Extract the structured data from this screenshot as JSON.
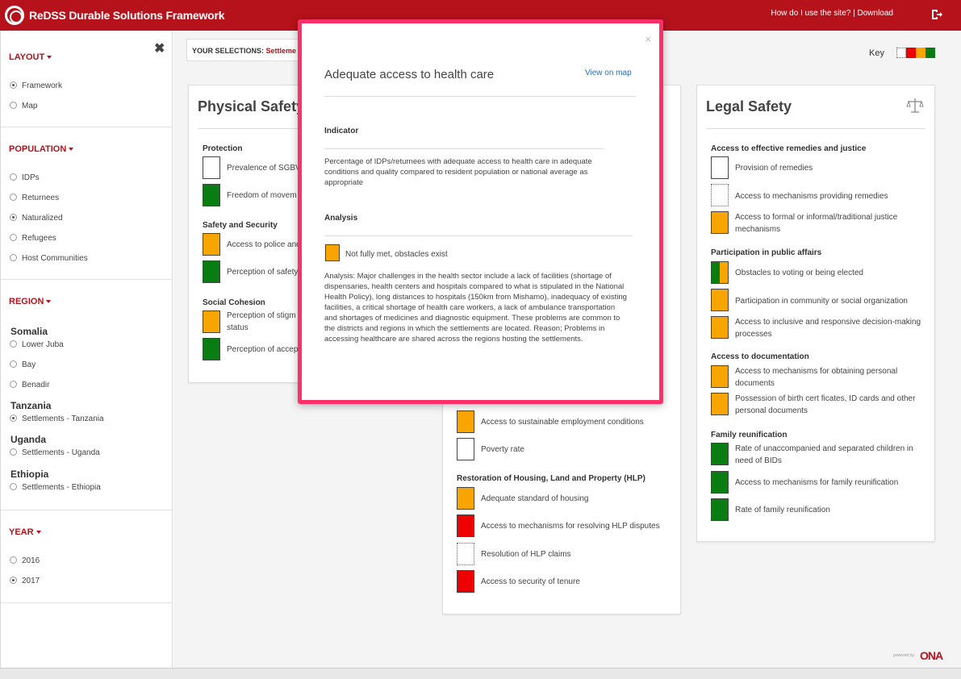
{
  "header": {
    "title": "ReDSS Durable Solutions Framework",
    "help_link": "How do I use the site?",
    "separator": "|",
    "download_link": "Download"
  },
  "sidebar": {
    "close_glyph": "✖",
    "layout": {
      "heading": "LAYOUT",
      "options": [
        "Framework",
        "Map"
      ],
      "selected": "Framework"
    },
    "population": {
      "heading": "POPULATION",
      "options": [
        "IDPs",
        "Returnees",
        "Naturalized",
        "Refugees",
        "Host Communities"
      ],
      "selected": "Naturalized"
    },
    "region": {
      "heading": "REGION",
      "countries": [
        {
          "name": "Somalia",
          "options": [
            "Lower Juba",
            "Bay",
            "Benadir"
          ]
        },
        {
          "name": "Tanzania",
          "options": [
            "Settlements - Tanzania"
          ]
        },
        {
          "name": "Uganda",
          "options": [
            "Settlements - Uganda"
          ]
        },
        {
          "name": "Ethiopia",
          "options": [
            "Settlements - Ethiopia"
          ]
        }
      ],
      "selected": "Settlements - Tanzania"
    },
    "year": {
      "heading": "YEAR",
      "options": [
        "2016",
        "2017"
      ],
      "selected": "2017"
    }
  },
  "selections": {
    "label": "YOUR SELECTIONS:",
    "value": "Settleme"
  },
  "key": {
    "label": "Key",
    "colors": [
      "#ffffff",
      "#ee0000",
      "#f9a500",
      "#0a7d12"
    ]
  },
  "physical_safety": {
    "title": "Physical Safety",
    "groups": [
      {
        "name": "Protection",
        "items": [
          {
            "label": "Prevalence of SGBV",
            "status": "white"
          },
          {
            "label": "Freedom of movem",
            "status": "green"
          }
        ]
      },
      {
        "name": "Safety and Security",
        "items": [
          {
            "label": "Access to police and",
            "status": "amber"
          },
          {
            "label": "Perception of safety",
            "status": "green"
          }
        ]
      },
      {
        "name": "Social Cohesion",
        "items": [
          {
            "label": "Perception of stigm",
            "label2": "status",
            "status": "amber"
          },
          {
            "label": "Perception of accep",
            "status": "green"
          }
        ]
      }
    ]
  },
  "material_safety": {
    "items": [
      {
        "label": "Access to sustainable employment conditions",
        "status": "amber"
      },
      {
        "label": "Poverty rate",
        "status": "white"
      }
    ],
    "group": "Restoration of Housing, Land and Property (HLP)",
    "hlp_items": [
      {
        "label": "Adequate standard of housing",
        "status": "amber"
      },
      {
        "label": "Access to mechanisms for resolving HLP disputes",
        "status": "red"
      },
      {
        "label": "Resolution of HLP claims",
        "status": "dotted"
      },
      {
        "label": "Access to security of tenure",
        "status": "red"
      }
    ],
    "hidden_bracket": "]"
  },
  "legal_safety": {
    "title": "Legal Safety",
    "groups": [
      {
        "name": "Access to effective remedies and justice",
        "items": [
          {
            "label": "Provision of remedies",
            "status": "white"
          },
          {
            "label": "Access to mechanisms providing remedies",
            "status": "dotted"
          },
          {
            "label": "Access to formal or informal/traditional justice",
            "label2": "mechanisms",
            "status": "amber"
          }
        ]
      },
      {
        "name": "Participation in public affairs",
        "items": [
          {
            "label": "Obstacles to voting or being elected",
            "status": "split"
          },
          {
            "label": "Participation in community or social organization",
            "status": "amber"
          },
          {
            "label": "Access to inclusive and responsive decision-making",
            "label2": "processes",
            "status": "amber"
          }
        ]
      },
      {
        "name": "Access to documentation",
        "items": [
          {
            "label": "Access to mechanisms for obtaining personal",
            "label2": "documents",
            "status": "amber"
          },
          {
            "label": "Possession of birth cert ficates, ID cards and other",
            "label2": "personal documents",
            "status": "amber"
          }
        ]
      },
      {
        "name": "Family reunification",
        "items": [
          {
            "label": "Rate of unaccompanied and separated children in",
            "label2": "need of BIDs",
            "status": "green"
          },
          {
            "label": "Access to mechanisms for family reunification",
            "status": "green"
          },
          {
            "label": "Rate of family reunification",
            "status": "green"
          }
        ]
      }
    ]
  },
  "modal": {
    "close_glyph": "×",
    "title": "Adequate access to health care",
    "map_link": "View on map",
    "indicator_heading": "Indicator",
    "indicator_text": "Percentage of IDPs/returnees with adequate access to health care in adequate conditions and quality compared to resident population or national average as appropriate",
    "analysis_heading": "Analysis",
    "status_label": "Not fully met, obstacles exist",
    "status_color": "#f9a500",
    "analysis_text": "Analysis: Major challenges in the health sector include a lack of facilities (shortage of dispensaries, health centers and hospitals compared to what is stipulated in the National Health Policy), long distances to hospitals (150km from Mishamo), inadequacy of existing facilities, a critical shortage of health care workers, a lack of ambulance transportation and shortages of medicines and diagnostic equipment. These problems are common to the districts and regions in which the settlements are located. Reason; Problems in accessing healthcare are shared across the regions hosting the settlements."
  },
  "footer": {
    "powered": "powered by",
    "brand": "ONA"
  }
}
